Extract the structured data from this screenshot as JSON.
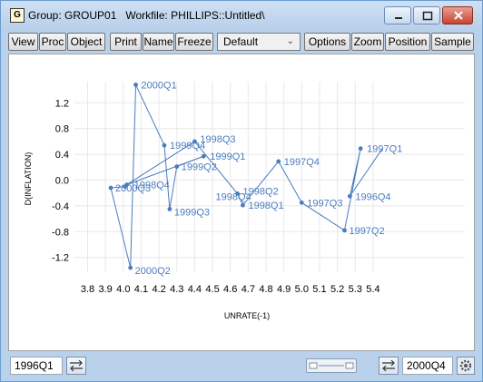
{
  "window": {
    "app_icon_letter": "G",
    "title": "Group: GROUP01   Workfile: PHILLIPS::Untitled\\"
  },
  "toolbar": {
    "buttons": [
      "View",
      "Proc",
      "Object",
      "Print",
      "Name",
      "Freeze"
    ],
    "dropdown_value": "Default",
    "right_buttons": [
      "Options",
      "Zoom",
      "Position",
      "Sample"
    ]
  },
  "status": {
    "start": "1996Q1",
    "end": "2000Q4"
  },
  "chart_data": {
    "type": "line",
    "xlabel": "UNRATE(-1)",
    "ylabel": "D(INFLATION)",
    "xlim": [
      3.75,
      5.45
    ],
    "ylim": [
      -1.5,
      1.6
    ],
    "xticks": [
      3.8,
      3.9,
      4.0,
      4.1,
      4.2,
      4.3,
      4.4,
      4.5,
      4.6,
      4.7,
      4.8,
      4.9,
      5.0,
      5.1,
      5.2,
      5.3,
      5.4
    ],
    "yticks": [
      1.2,
      0.8,
      0.4,
      0.0,
      -0.4,
      -0.8,
      -1.2
    ],
    "color": "#4a7cc0",
    "points": [
      {
        "label": "",
        "x": 5.45,
        "y": 0.48
      },
      {
        "label": "1996Q4",
        "x": 5.27,
        "y": -0.25
      },
      {
        "label": "1997Q1",
        "x": 5.33,
        "y": 0.49
      },
      {
        "label": "1997Q2",
        "x": 5.24,
        "y": -0.78
      },
      {
        "label": "1997Q3",
        "x": 5.0,
        "y": -0.35
      },
      {
        "label": "1997Q4",
        "x": 4.87,
        "y": 0.29
      },
      {
        "label": "1998Q1",
        "x": 4.67,
        "y": -0.39
      },
      {
        "label": "1998Q2",
        "x": 4.64,
        "y": -0.21
      },
      {
        "label": "1998Q3",
        "x": 4.4,
        "y": 0.6
      },
      {
        "label": "1998Q4",
        "x": 4.02,
        "y": -0.07
      },
      {
        "label": "1999Q1",
        "x": 4.45,
        "y": 0.37
      },
      {
        "label": "1999Q2",
        "x": 4.3,
        "y": 0.21
      },
      {
        "label": "1999Q3",
        "x": 4.26,
        "y": -0.45
      },
      {
        "label": "1999Q4",
        "x": 4.23,
        "y": 0.54
      },
      {
        "label": "2000Q1",
        "x": 4.07,
        "y": 1.48
      },
      {
        "label": "2000Q2",
        "x": 4.04,
        "y": -1.36
      },
      {
        "label": "2000Q3",
        "x": 3.93,
        "y": -0.12
      },
      {
        "label": "2000Q4",
        "x": 4.01,
        "y": -0.1
      }
    ],
    "point_labels_shown": [
      "1996Q4",
      "1997Q1",
      "1997Q2",
      "1997Q3",
      "1997Q4",
      "1998Q1",
      "1998Q2",
      "1998Q3",
      "1998Q4",
      "1999Q1",
      "1999Q2",
      "1999Q3",
      "1999Q4",
      "2000Q1",
      "2000Q2",
      "2000Q3"
    ],
    "extra_label_1998Q4_overlap": "1998Q4"
  }
}
